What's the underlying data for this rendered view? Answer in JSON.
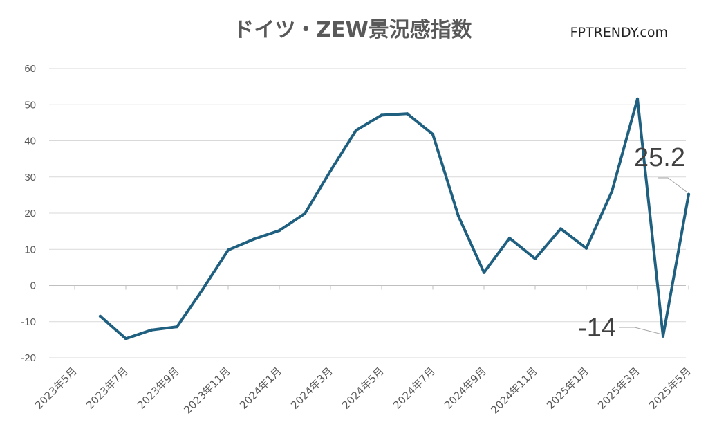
{
  "chart_data": {
    "type": "line",
    "title": "ドイツ・ZEW景況感指数",
    "brand": "FPTRENDY.com",
    "ylim": [
      -20,
      60
    ],
    "yticks": [
      "60",
      "50",
      "40",
      "30",
      "20",
      "10",
      "0",
      "-10",
      "-20"
    ],
    "grid": true,
    "legend": "none",
    "x_tick_labels": [
      "2023年5月",
      "2023年7月",
      "2023年9月",
      "2023年11月",
      "2024年1月",
      "2024年3月",
      "2024年5月",
      "2024年7月",
      "2024年9月",
      "2024年11月",
      "2025年1月",
      "2025年3月",
      "2025年5月"
    ],
    "x": [
      "2023年6月",
      "2023年7月",
      "2023年8月",
      "2023年9月",
      "2023年10月",
      "2023年11月",
      "2023年12月",
      "2024年1月",
      "2024年2月",
      "2024年3月",
      "2024年4月",
      "2024年5月",
      "2024年6月",
      "2024年7月",
      "2024年8月",
      "2024年9月",
      "2024年10月",
      "2024年11月",
      "2024年12月",
      "2025年1月",
      "2025年2月",
      "2025年3月",
      "2025年4月",
      "2025年5月"
    ],
    "series": [
      {
        "color": "#1f5f7f",
        "values": [
          -8.5,
          -14.7,
          -12.3,
          -11.4,
          -1.1,
          9.8,
          12.8,
          15.2,
          19.9,
          31.7,
          42.9,
          47.1,
          47.5,
          41.8,
          19.2,
          3.6,
          13.1,
          7.4,
          15.7,
          10.3,
          26.0,
          51.6,
          -14.0,
          25.2
        ]
      }
    ],
    "annotations": [
      {
        "label": "25.2",
        "point_index": 23
      },
      {
        "label": "-14",
        "point_index": 22
      }
    ]
  }
}
